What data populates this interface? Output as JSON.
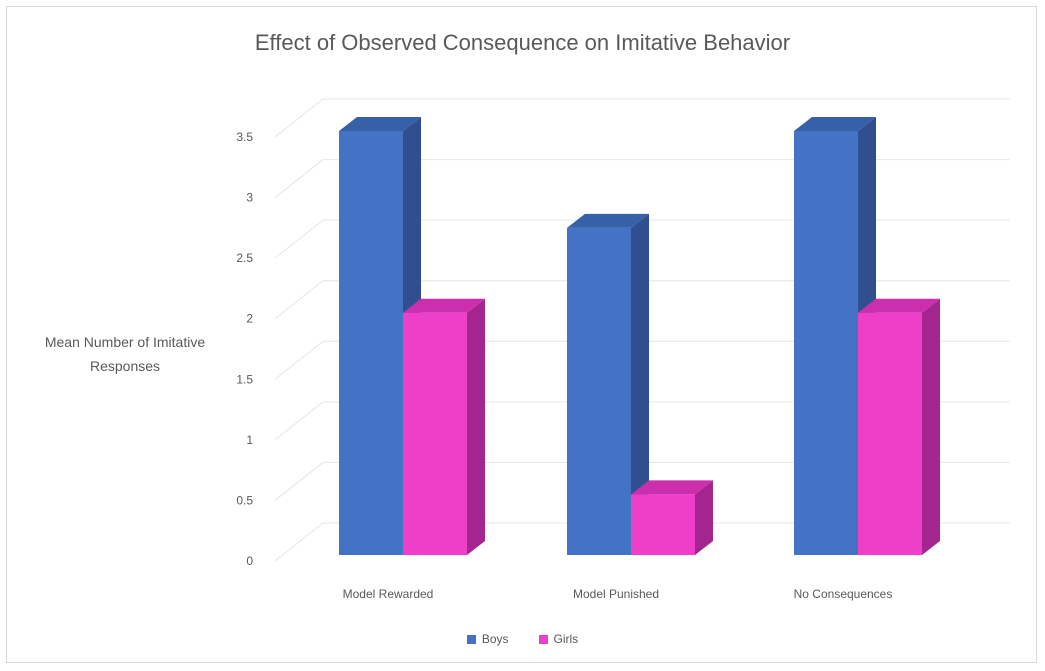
{
  "chart_data": {
    "type": "bar",
    "title": "Effect of Observed Consequence on Imitative Behavior",
    "ylabel": "Mean Number of Imitative Responses",
    "xlabel": "",
    "categories": [
      "Model Rewarded",
      "Model Punished",
      "No Consequences"
    ],
    "series": [
      {
        "name": "Boys",
        "values": [
          3.5,
          2.7,
          3.5
        ]
      },
      {
        "name": "Girls",
        "values": [
          2.0,
          0.5,
          2.0
        ]
      }
    ],
    "ylim": [
      0,
      3.5
    ],
    "yticks": [
      "0",
      "0.5",
      "1",
      "1.5",
      "2",
      "2.5",
      "3",
      "3.5"
    ],
    "grid": true,
    "legend_position": "bottom",
    "style": "3d-column",
    "colors": {
      "boys_front": "#4472c4",
      "boys_side": "#2f4f8f",
      "boys_top": "#3660a8",
      "girls_front": "#ee3fc8",
      "girls_side": "#a52590",
      "girls_top": "#cc2fae"
    }
  }
}
